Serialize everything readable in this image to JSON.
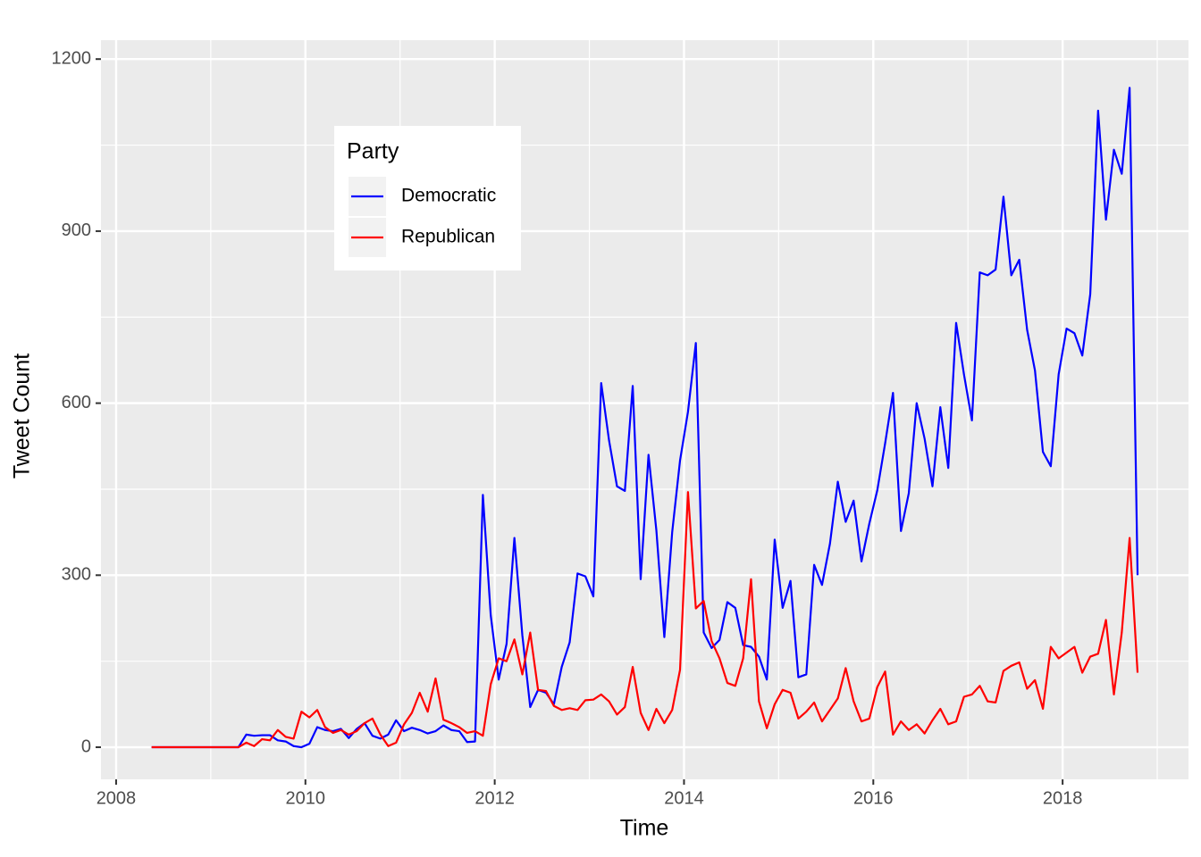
{
  "chart_data": {
    "type": "line",
    "x_label": "Time",
    "y_label": "Tweet Count",
    "legend_title": "Party",
    "legend_position": "top-left",
    "x": [
      2008.375,
      2008.458,
      2008.542,
      2008.625,
      2008.708,
      2008.792,
      2008.875,
      2008.958,
      2009.042,
      2009.125,
      2009.208,
      2009.292,
      2009.375,
      2009.458,
      2009.542,
      2009.625,
      2009.708,
      2009.792,
      2009.875,
      2009.958,
      2010.042,
      2010.125,
      2010.208,
      2010.292,
      2010.375,
      2010.458,
      2010.542,
      2010.625,
      2010.708,
      2010.792,
      2010.875,
      2010.958,
      2011.042,
      2011.125,
      2011.208,
      2011.292,
      2011.375,
      2011.458,
      2011.542,
      2011.625,
      2011.708,
      2011.792,
      2011.875,
      2011.958,
      2012.042,
      2012.125,
      2012.208,
      2012.292,
      2012.375,
      2012.458,
      2012.542,
      2012.625,
      2012.708,
      2012.792,
      2012.875,
      2012.958,
      2013.042,
      2013.125,
      2013.208,
      2013.292,
      2013.375,
      2013.458,
      2013.542,
      2013.625,
      2013.708,
      2013.792,
      2013.875,
      2013.958,
      2014.042,
      2014.125,
      2014.208,
      2014.292,
      2014.375,
      2014.458,
      2014.542,
      2014.625,
      2014.708,
      2014.792,
      2014.875,
      2014.958,
      2015.042,
      2015.125,
      2015.208,
      2015.292,
      2015.375,
      2015.458,
      2015.542,
      2015.625,
      2015.708,
      2015.792,
      2015.875,
      2015.958,
      2016.042,
      2016.125,
      2016.208,
      2016.292,
      2016.375,
      2016.458,
      2016.542,
      2016.625,
      2016.708,
      2016.792,
      2016.875,
      2016.958,
      2017.042,
      2017.125,
      2017.208,
      2017.292,
      2017.375,
      2017.458,
      2017.542,
      2017.625,
      2017.708,
      2017.792,
      2017.875,
      2017.958,
      2018.042,
      2018.125,
      2018.208,
      2018.292,
      2018.375,
      2018.458,
      2018.542,
      2018.625,
      2018.708,
      2018.792
    ],
    "series": [
      {
        "name": "Democratic",
        "color": "#0000ff",
        "values": [
          0,
          0,
          0,
          0,
          0,
          0,
          0,
          0,
          0,
          0,
          0,
          0,
          22,
          20,
          21,
          21,
          12,
          10,
          2,
          0,
          6,
          35,
          30,
          28,
          32,
          16,
          32,
          42,
          20,
          15,
          22,
          47,
          28,
          34,
          30,
          24,
          28,
          38,
          30,
          28,
          9,
          10,
          440,
          230,
          118,
          180,
          365,
          195,
          70,
          100,
          95,
          75,
          140,
          183,
          303,
          298,
          263,
          635,
          535,
          455,
          447,
          630,
          293,
          510,
          378,
          192,
          375,
          500,
          585,
          705,
          200,
          173,
          187,
          253,
          243,
          178,
          175,
          158,
          118,
          362,
          243,
          290,
          122,
          127,
          318,
          283,
          355,
          463,
          393,
          430,
          324,
          390,
          448,
          530,
          618,
          377,
          443,
          600,
          538,
          455,
          593,
          487,
          740,
          650,
          570,
          828,
          823,
          833,
          960,
          823,
          850,
          728,
          657,
          515,
          490,
          650,
          730,
          722,
          683,
          790,
          1110,
          920,
          1042,
          1000,
          1150,
          300
        ]
      },
      {
        "name": "Republican",
        "color": "#ff0000",
        "values": [
          0,
          0,
          0,
          0,
          0,
          0,
          0,
          0,
          0,
          0,
          0,
          0,
          8,
          2,
          14,
          12,
          30,
          18,
          15,
          62,
          52,
          65,
          35,
          25,
          30,
          22,
          28,
          42,
          50,
          22,
          2,
          8,
          40,
          60,
          95,
          62,
          120,
          48,
          42,
          35,
          25,
          28,
          20,
          110,
          155,
          150,
          188,
          127,
          200,
          100,
          98,
          72,
          65,
          68,
          65,
          82,
          83,
          92,
          80,
          57,
          70,
          140,
          60,
          30,
          67,
          42,
          65,
          135,
          445,
          242,
          255,
          185,
          155,
          112,
          107,
          155,
          293,
          80,
          33,
          75,
          100,
          95,
          50,
          62,
          78,
          45,
          65,
          85,
          138,
          80,
          45,
          50,
          105,
          132,
          22,
          45,
          30,
          40,
          24,
          47,
          67,
          40,
          45,
          88,
          92,
          107,
          80,
          78,
          133,
          142,
          148,
          102,
          117,
          67,
          175,
          155,
          165,
          175,
          130,
          158,
          163,
          222,
          92,
          200,
          365,
          130
        ]
      }
    ],
    "xlim": [
      2007.84,
      2019.33
    ],
    "xticks": [
      2008,
      2010,
      2012,
      2014,
      2016,
      2018
    ],
    "ylim": [
      -56,
      1233
    ],
    "yticks": [
      0,
      300,
      600,
      900,
      1200
    ],
    "grid": true,
    "background": "#ebebeb"
  }
}
